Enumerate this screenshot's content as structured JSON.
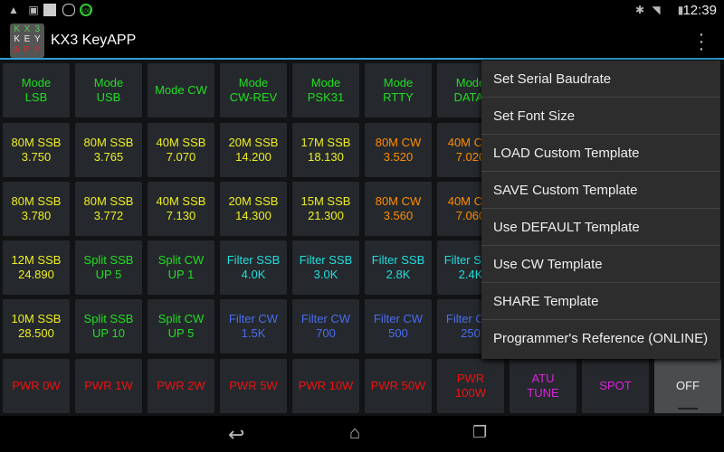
{
  "status": {
    "time": "12:39",
    "icons": [
      "notification-icon",
      "image-icon",
      "keyboard-icon",
      "circle-icon",
      "battery-100-icon",
      "bluetooth-icon",
      "wifi-icon",
      "battery-icon"
    ]
  },
  "app": {
    "title": "KX3 KeyAPP",
    "logo_letters": [
      "K",
      "X",
      "3",
      "K",
      "E",
      "Y",
      "A",
      "P",
      "P"
    ]
  },
  "colors": {
    "green": "#22dd22",
    "yellow": "#eeee22",
    "orange": "#ff8c00",
    "cyan": "#22dddd",
    "blue": "#4a6cf0",
    "red": "#ee1111",
    "magenta": "#dd22dd",
    "white": "#eeeeee",
    "accent": "#2a9fd6"
  },
  "grid": [
    [
      {
        "l1": "Mode",
        "l2": "LSB",
        "c": "green"
      },
      {
        "l1": "Mode",
        "l2": "USB",
        "c": "green"
      },
      {
        "l1": "Mode CW",
        "l2": "",
        "c": "green"
      },
      {
        "l1": "Mode",
        "l2": "CW-REV",
        "c": "green"
      },
      {
        "l1": "Mode",
        "l2": "PSK31",
        "c": "green"
      },
      {
        "l1": "Mode",
        "l2": "RTTY",
        "c": "green"
      },
      {
        "l1": "Mode",
        "l2": "DATA-",
        "c": "green"
      }
    ],
    [
      {
        "l1": "80M SSB",
        "l2": "3.750",
        "c": "yellow"
      },
      {
        "l1": "80M SSB",
        "l2": "3.765",
        "c": "yellow"
      },
      {
        "l1": "40M SSB",
        "l2": "7.070",
        "c": "yellow"
      },
      {
        "l1": "20M SSB",
        "l2": "14.200",
        "c": "yellow"
      },
      {
        "l1": "17M SSB",
        "l2": "18.130",
        "c": "yellow"
      },
      {
        "l1": "80M CW",
        "l2": "3.520",
        "c": "orange"
      },
      {
        "l1": "40M CW",
        "l2": "7.020",
        "c": "orange"
      }
    ],
    [
      {
        "l1": "80M SSB",
        "l2": "3.780",
        "c": "yellow"
      },
      {
        "l1": "80M SSB",
        "l2": "3.772",
        "c": "yellow"
      },
      {
        "l1": "40M SSB",
        "l2": "7.130",
        "c": "yellow"
      },
      {
        "l1": "20M SSB",
        "l2": "14.300",
        "c": "yellow"
      },
      {
        "l1": "15M SSB",
        "l2": "21.300",
        "c": "yellow"
      },
      {
        "l1": "80M CW",
        "l2": "3.560",
        "c": "orange"
      },
      {
        "l1": "40M CW",
        "l2": "7.060",
        "c": "orange"
      }
    ],
    [
      {
        "l1": "12M SSB",
        "l2": "24.890",
        "c": "yellow"
      },
      {
        "l1": "Split SSB",
        "l2": "UP 5",
        "c": "green"
      },
      {
        "l1": "Split CW",
        "l2": "UP 1",
        "c": "green"
      },
      {
        "l1": "Filter SSB",
        "l2": "4.0K",
        "c": "cyan"
      },
      {
        "l1": "Filter SSB",
        "l2": "3.0K",
        "c": "cyan"
      },
      {
        "l1": "Filter SSB",
        "l2": "2.8K",
        "c": "cyan"
      },
      {
        "l1": "Filter SSB",
        "l2": "2.4K",
        "c": "cyan"
      }
    ],
    [
      {
        "l1": "10M SSB",
        "l2": "28.500",
        "c": "yellow"
      },
      {
        "l1": "Split SSB",
        "l2": "UP 10",
        "c": "green"
      },
      {
        "l1": "Split CW",
        "l2": "UP 5",
        "c": "green"
      },
      {
        "l1": "Filter CW",
        "l2": "1.5K",
        "c": "blue"
      },
      {
        "l1": "Filter CW",
        "l2": "700",
        "c": "blue"
      },
      {
        "l1": "Filter CW",
        "l2": "500",
        "c": "blue"
      },
      {
        "l1": "Filter CW",
        "l2": "250",
        "c": "blue"
      }
    ],
    [
      {
        "l1": "PWR 0W",
        "l2": "",
        "c": "red"
      },
      {
        "l1": "PWR 1W",
        "l2": "",
        "c": "red"
      },
      {
        "l1": "PWR 2W",
        "l2": "",
        "c": "red"
      },
      {
        "l1": "PWR 5W",
        "l2": "",
        "c": "red"
      },
      {
        "l1": "PWR 10W",
        "l2": "",
        "c": "red"
      },
      {
        "l1": "PWR 50W",
        "l2": "",
        "c": "red"
      },
      {
        "l1": "PWR",
        "l2": "100W",
        "c": "red"
      },
      {
        "l1": "ATU",
        "l2": "TUNE",
        "c": "magenta"
      },
      {
        "l1": "SPOT",
        "l2": "",
        "c": "magenta"
      },
      {
        "l1": "OFF",
        "l2": "",
        "c": "white"
      }
    ]
  ],
  "menu": [
    "Set Serial Baudrate",
    "Set Font Size",
    "LOAD Custom Template",
    "SAVE Custom Template",
    "Use DEFAULT Template",
    "Use CW Template",
    "SHARE Template",
    "Programmer's Reference (ONLINE)"
  ],
  "nav": {
    "back": "back-icon",
    "home": "home-icon",
    "recents": "recents-icon"
  }
}
